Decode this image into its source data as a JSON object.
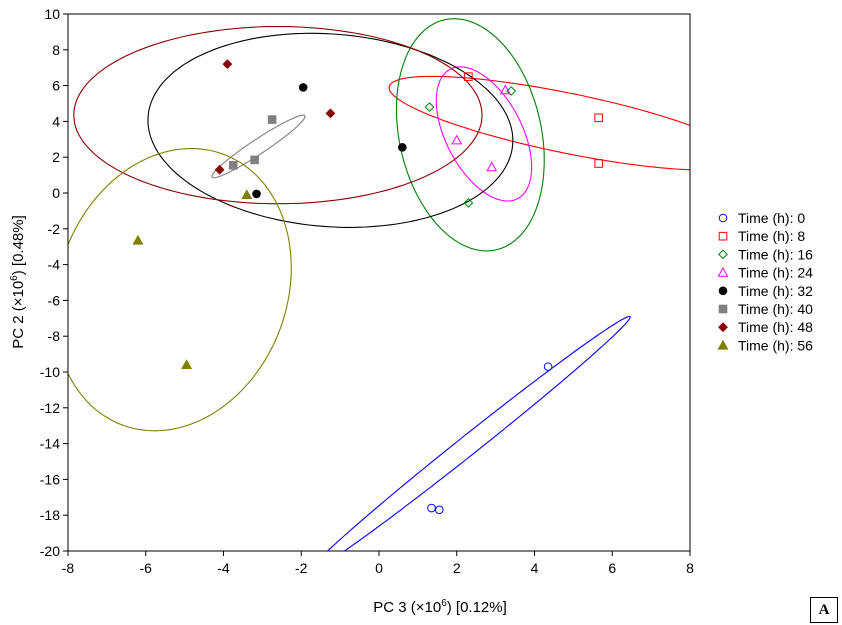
{
  "panel_label": "A",
  "chart_data": {
    "type": "scatter",
    "xlabel_prefix": "PC 3 (×10",
    "xlabel_exp": "6",
    "xlabel_suffix": ") [0.12%]",
    "ylabel_prefix": "PC 2 (×10",
    "ylabel_exp": "6",
    "ylabel_suffix": ") [0.48%]",
    "xlim": [
      -8,
      8
    ],
    "ylim": [
      -20,
      10
    ],
    "xticks": [
      -8,
      -6,
      -4,
      -2,
      0,
      2,
      4,
      6,
      8
    ],
    "yticks": [
      -20,
      -18,
      -16,
      -14,
      -12,
      -10,
      -8,
      -6,
      -4,
      -2,
      0,
      2,
      4,
      6,
      8,
      10
    ],
    "grid": false,
    "legend_position": "right",
    "series": [
      {
        "name": "Time (h): 0",
        "marker": "circle-open",
        "color": "#0000ff",
        "points": [
          [
            4.35,
            -9.7
          ],
          [
            1.35,
            -17.6
          ],
          [
            1.55,
            -17.7
          ]
        ]
      },
      {
        "name": "Time (h): 8",
        "marker": "square-open",
        "color": "#ff0000",
        "points": [
          [
            2.3,
            6.5
          ],
          [
            5.65,
            4.2
          ],
          [
            5.65,
            1.65
          ]
        ]
      },
      {
        "name": "Time (h): 16",
        "marker": "diamond-open",
        "color": "#008000",
        "points": [
          [
            1.3,
            4.8
          ],
          [
            3.4,
            5.7
          ],
          [
            2.3,
            -0.55
          ]
        ]
      },
      {
        "name": "Time (h): 24",
        "marker": "triangle-open",
        "color": "#ff00ff",
        "points": [
          [
            3.25,
            5.75
          ],
          [
            2.0,
            2.95
          ],
          [
            2.9,
            1.45
          ]
        ]
      },
      {
        "name": "Time (h): 32",
        "marker": "circle-filled",
        "color": "#000000",
        "points": [
          [
            -1.95,
            5.9
          ],
          [
            0.6,
            2.55
          ],
          [
            -3.15,
            -0.05
          ]
        ]
      },
      {
        "name": "Time (h): 40",
        "marker": "square-filled",
        "color": "#808080",
        "points": [
          [
            -2.75,
            4.1
          ],
          [
            -3.75,
            1.55
          ],
          [
            -3.2,
            1.85
          ]
        ]
      },
      {
        "name": "Time (h): 48",
        "marker": "diamond-filled",
        "color": "#8b0000",
        "points": [
          [
            -3.9,
            7.2
          ],
          [
            -1.25,
            4.45
          ],
          [
            -4.1,
            1.3
          ]
        ]
      },
      {
        "name": "Time (h): 56",
        "marker": "triangle-filled",
        "color": "#808000",
        "points": [
          [
            -6.2,
            -2.65
          ],
          [
            -4.95,
            -9.6
          ],
          [
            -3.4,
            -0.1
          ]
        ]
      }
    ],
    "ellipses": [
      {
        "group": "Time (h): 0",
        "color": "#0000ff",
        "cx": 2.35,
        "cy": -14.0,
        "rx": 8.2,
        "ry": 0.35,
        "angle_deg": 60
      },
      {
        "group": "Time (h): 8",
        "color": "#ff0000",
        "cx": 4.85,
        "cy": 3.9,
        "rx": 5.05,
        "ry": 1.55,
        "angle_deg": -26
      },
      {
        "group": "Time (h): 16",
        "color": "#008000",
        "cx": 2.35,
        "cy": 3.25,
        "rx": 1.85,
        "ry": 6.5,
        "angle_deg": 4
      },
      {
        "group": "Time (h): 24",
        "color": "#ff00ff",
        "cx": 2.7,
        "cy": 3.3,
        "rx": 1.05,
        "ry": 3.8,
        "angle_deg": 10
      },
      {
        "group": "Time (h): 32",
        "color": "#000000",
        "cx": -1.25,
        "cy": 3.5,
        "rx": 4.6,
        "ry": 5.5,
        "angle_deg": 18
      },
      {
        "group": "Time (h): 40",
        "color": "#808080",
        "cx": -3.1,
        "cy": 2.6,
        "rx": 2.1,
        "ry": 0.28,
        "angle_deg": 56
      },
      {
        "group": "Time (h): 48",
        "color": "#8b0000",
        "cx": -2.6,
        "cy": 4.35,
        "rx": 5.25,
        "ry": 4.95,
        "angle_deg": 0
      },
      {
        "group": "Time (h): 56",
        "color": "#808000",
        "cx": -5.3,
        "cy": -5.4,
        "rx": 3.0,
        "ry": 7.9,
        "angle_deg": -4
      }
    ]
  }
}
